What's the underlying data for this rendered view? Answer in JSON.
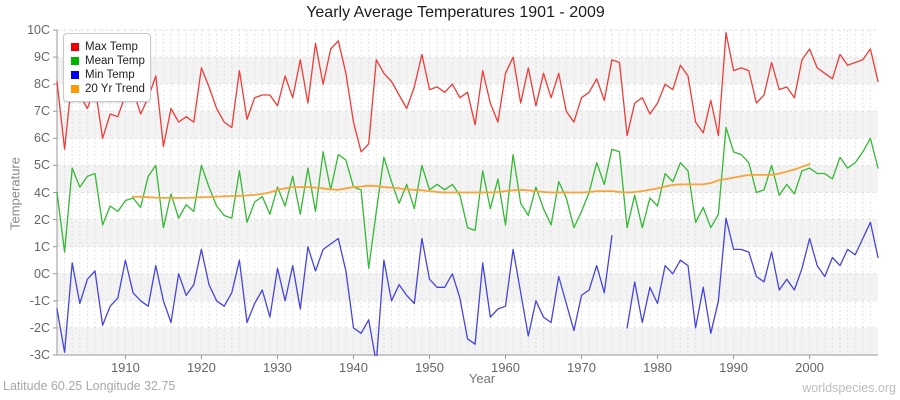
{
  "footer": {
    "left": "Latitude 60.25 Longitude 32.75",
    "right": "worldspecies.org"
  },
  "chart_data": {
    "type": "line",
    "title": "Yearly Average Temperatures 1901 - 2009",
    "xlabel": "Year",
    "ylabel": "Temperature",
    "x_start": 1901,
    "x_end": 2009,
    "x_step": 1,
    "x_ticks": [
      1910,
      1920,
      1930,
      1940,
      1950,
      1960,
      1970,
      1980,
      1990,
      2000
    ],
    "y_tick_labels": [
      "10C",
      "9C",
      "8C",
      "7C",
      "6C",
      "5C",
      "4C",
      "2C",
      "1C",
      "0C",
      "-1C",
      "-2C",
      "-3C"
    ],
    "y_tick_values": [
      10,
      9,
      8,
      7,
      6,
      5,
      4,
      2,
      1,
      0,
      -1,
      -2,
      -3
    ],
    "grid": true,
    "legend_position": "top-left",
    "band_color_a": "#ffffff",
    "band_color_b": "#f3f3f3",
    "axis_color": "#9a9a9a",
    "vgrid_color": "#dcdcdc",
    "hgrid_color": "#e2e2e2",
    "series": [
      {
        "name": "Max Temp",
        "color": "#ee3c38",
        "legend_color": "#ee0000",
        "width": 1.3,
        "start_year": 1901,
        "values": [
          8.1,
          5.6,
          8.3,
          7.6,
          7.1,
          7.9,
          6.0,
          6.9,
          6.8,
          7.6,
          7.8,
          6.9,
          7.5,
          8.3,
          5.7,
          7.1,
          6.6,
          6.8,
          6.6,
          8.6,
          7.9,
          7.1,
          6.6,
          6.4,
          8.5,
          6.7,
          7.5,
          7.6,
          7.6,
          7.2,
          8.3,
          7.5,
          8.9,
          7.3,
          9.5,
          8.0,
          9.3,
          9.6,
          8.4,
          6.6,
          5.5,
          5.8,
          8.9,
          8.4,
          8.1,
          7.6,
          7.1,
          7.9,
          9.1,
          7.8,
          7.9,
          7.7,
          8.0,
          7.5,
          7.7,
          6.5,
          8.5,
          7.3,
          6.6,
          8.4,
          9.0,
          7.3,
          8.6,
          7.2,
          8.4,
          7.5,
          8.4,
          7.0,
          6.6,
          7.5,
          7.7,
          8.2,
          7.4,
          8.9,
          8.8,
          6.1,
          7.3,
          7.5,
          6.9,
          7.3,
          8.0,
          7.8,
          8.7,
          8.3,
          6.6,
          6.2,
          7.4,
          6.1,
          9.9,
          8.5,
          8.6,
          8.5,
          7.3,
          7.6,
          8.8,
          7.8,
          7.9,
          7.5,
          8.9,
          9.3,
          8.6,
          8.4,
          8.2,
          9.1,
          8.7,
          8.8,
          8.9,
          9.3,
          8.1
        ]
      },
      {
        "name": "Mean Temp",
        "color": "#35b835",
        "legend_color": "#00b400",
        "width": 1.3,
        "start_year": 1901,
        "values": [
          4.0,
          0.8,
          4.9,
          4.2,
          4.6,
          4.7,
          1.8,
          3.0,
          2.6,
          3.4,
          3.6,
          2.9,
          4.6,
          5.0,
          1.7,
          3.9,
          2.1,
          3.1,
          2.6,
          5.0,
          4.2,
          3.0,
          2.3,
          2.1,
          4.8,
          1.9,
          3.3,
          3.7,
          2.4,
          4.2,
          3.0,
          4.6,
          2.4,
          4.9,
          2.6,
          5.5,
          4.1,
          5.4,
          5.2,
          4.2,
          4.1,
          0.2,
          2.6,
          5.3,
          4.4,
          3.2,
          4.3,
          2.8,
          5.0,
          4.1,
          4.3,
          4.1,
          4.3,
          3.8,
          1.7,
          1.6,
          4.8,
          2.8,
          4.5,
          1.8,
          5.4,
          3.2,
          2.3,
          4.2,
          2.8,
          1.8,
          4.4,
          3.6,
          1.7,
          2.6,
          4.0,
          5.1,
          4.3,
          5.6,
          5.5,
          1.7,
          3.8,
          1.7,
          3.6,
          3.0,
          4.7,
          4.4,
          5.1,
          4.8,
          1.9,
          2.9,
          1.7,
          2.4,
          6.4,
          5.5,
          5.4,
          5.1,
          4.0,
          4.1,
          5.0,
          3.8,
          4.3,
          3.9,
          4.8,
          4.9,
          4.7,
          4.7,
          4.5,
          5.3,
          4.9,
          5.1,
          5.5,
          6.0,
          4.9
        ]
      },
      {
        "name": "Min Temp",
        "color": "#4545dd",
        "legend_color": "#0000ee",
        "width": 1.3,
        "start_year": 1901,
        "values": [
          -1.3,
          -2.9,
          0.4,
          -1.1,
          -0.2,
          0.1,
          -1.9,
          -1.2,
          -0.9,
          0.5,
          -0.7,
          -1.0,
          -1.2,
          0.3,
          -1.0,
          -1.8,
          0.0,
          -0.8,
          -0.4,
          0.9,
          -0.4,
          -1.0,
          -1.2,
          -0.7,
          0.5,
          -1.8,
          -1.1,
          -0.6,
          -1.6,
          0.2,
          -1.0,
          0.3,
          -1.3,
          1.0,
          0.1,
          0.9,
          1.1,
          1.3,
          0.1,
          -2.0,
          -2.2,
          -1.7,
          -3.3,
          0.5,
          -1.0,
          -0.4,
          -0.8,
          -1.1,
          1.3,
          -0.2,
          -0.5,
          -0.5,
          0.0,
          -0.9,
          -2.4,
          -2.6,
          0.4,
          -1.6,
          -1.3,
          -1.2,
          0.9,
          -0.7,
          -2.3,
          -1.0,
          -1.6,
          -1.8,
          -0.1,
          -1.1,
          -2.1,
          -0.8,
          -0.6,
          0.3,
          -0.7,
          1.4,
          null,
          -2.0,
          -0.3,
          -1.8,
          -0.5,
          -1.1,
          0.3,
          0.0,
          0.5,
          0.3,
          -2.0,
          -0.5,
          -2.2,
          -1.0,
          2.1,
          0.9,
          0.9,
          0.8,
          -0.1,
          -0.3,
          0.8,
          -0.6,
          -0.2,
          -0.6,
          0.2,
          1.3,
          0.3,
          -0.1,
          0.6,
          0.3,
          0.9,
          0.7,
          1.3,
          1.9,
          0.6
        ]
      },
      {
        "name": "20 Yr Trend",
        "color": "#f8a438",
        "legend_color": "#ff9900",
        "width": 1.8,
        "start_year": 1911,
        "values": [
          3.7,
          3.68,
          3.65,
          3.62,
          3.6,
          3.6,
          3.6,
          3.6,
          3.62,
          3.65,
          3.67,
          3.7,
          3.72,
          3.74,
          3.76,
          3.78,
          3.82,
          3.9,
          4.0,
          4.1,
          4.15,
          4.2,
          4.2,
          4.2,
          4.18,
          4.15,
          4.12,
          4.1,
          4.15,
          4.2,
          4.22,
          4.25,
          4.24,
          4.2,
          4.18,
          4.15,
          4.12,
          4.1,
          4.08,
          4.05,
          4.02,
          4.0,
          4.0,
          4.0,
          4.0,
          4.0,
          4.0,
          4.0,
          4.02,
          4.05,
          4.08,
          4.1,
          4.08,
          4.05,
          4.02,
          4.0,
          4.0,
          4.0,
          4.0,
          4.0,
          4.02,
          4.05,
          4.05,
          4.05,
          4.02,
          4.0,
          4.02,
          4.05,
          4.1,
          4.15,
          4.22,
          4.28,
          4.3,
          4.3,
          4.3,
          4.3,
          4.35,
          4.45,
          4.5,
          4.55,
          4.6,
          4.65,
          4.65,
          4.65,
          4.65,
          4.7,
          4.77,
          4.85,
          4.95,
          5.05
        ]
      }
    ]
  }
}
